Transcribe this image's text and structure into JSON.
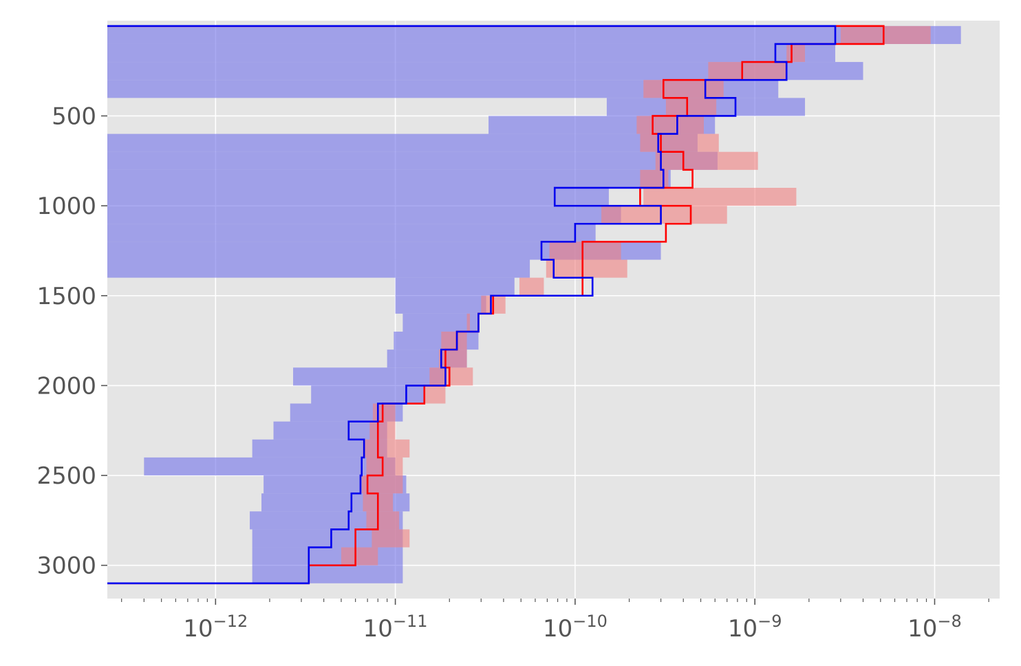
{
  "chart_data": {
    "type": "step-profile",
    "x_scale": "log",
    "y_inverted": true,
    "grid": true,
    "legend": "none",
    "xlim": [
      2.5e-13,
      2.3e-08
    ],
    "ylim": [
      3185,
      -30
    ],
    "x_ticks": [
      {
        "value": 1e-12,
        "base": "10",
        "exp": "−12"
      },
      {
        "value": 1e-11,
        "base": "10",
        "exp": "−11"
      },
      {
        "value": 1e-10,
        "base": "10",
        "exp": "−10"
      },
      {
        "value": 1e-09,
        "base": "10",
        "exp": "−9"
      },
      {
        "value": 1e-08,
        "base": "10",
        "exp": "−8"
      }
    ],
    "y_ticks": [
      "500",
      "1000",
      "1500",
      "2000",
      "2500",
      "3000"
    ],
    "colors": {
      "red": "#ff0000",
      "blue": "#0000ee",
      "red_band": "#f08080",
      "blue_band": "#7b7bea",
      "panel_bg": "#e5e5e5",
      "grid": "#ffffff"
    },
    "series": [
      {
        "color": "red",
        "bin_edges": [
          0,
          100,
          200,
          300,
          400,
          500,
          600,
          700,
          800,
          900,
          1000,
          1100,
          1200,
          1300,
          1400,
          1500,
          1600,
          1700,
          1800,
          1900,
          2000,
          2100,
          2200,
          2300,
          2400,
          2500,
          2600,
          2700,
          2800,
          2900,
          3000,
          3100
        ],
        "values": [
          5.2e-09,
          1.6e-09,
          8.5e-10,
          3.1e-10,
          4.2e-10,
          2.7e-10,
          3e-10,
          4e-10,
          4.5e-10,
          2.3e-10,
          4.4e-10,
          3.2e-10,
          1.1e-10,
          1.1e-10,
          1.1e-10,
          3.5e-11,
          2.9e-11,
          2.2e-11,
          1.9e-11,
          2e-11,
          1.45e-11,
          8.5e-12,
          8e-12,
          8e-12,
          8.5e-12,
          7e-12,
          8e-12,
          8e-12,
          6e-12,
          6e-12,
          3.3e-12
        ],
        "band_lo": [
          3e-09,
          1.5e-09,
          5.5e-10,
          2.4e-10,
          3.2e-10,
          2.2e-10,
          2.3e-10,
          2.8e-10,
          2.3e-10,
          2.4e-10,
          1.4e-10,
          1.8e-10,
          7.2e-11,
          6.9e-11,
          6.7e-11,
          3e-11,
          2.6e-11,
          1.8e-11,
          1.75e-11,
          1.55e-11,
          1.45e-11,
          7.5e-12,
          7.2e-12,
          6.6e-12,
          6.9e-12,
          6.5e-12,
          6.6e-12,
          6.9e-12,
          7.4e-12,
          5e-12,
          6e-12
        ],
        "band_hi": [
          9.5e-09,
          1.9e-09,
          1.5e-09,
          6.7e-10,
          6.1e-10,
          5.2e-10,
          6.3e-10,
          1.04e-09,
          3.3e-10,
          1.7e-09,
          7e-10,
          1.8e-10,
          1.8e-10,
          1.95e-10,
          4.9e-11,
          4.1e-11,
          2.5e-11,
          2.5e-11,
          2.5e-11,
          2.7e-11,
          1.9e-11,
          1e-11,
          1e-11,
          1.2e-11,
          1.1e-11,
          1.1e-11,
          9.7e-12,
          1.05e-11,
          1.2e-11,
          8e-12,
          6e-12
        ]
      },
      {
        "color": "blue",
        "bin_edges": [
          0,
          100,
          200,
          300,
          400,
          500,
          600,
          700,
          800,
          900,
          1000,
          1100,
          1200,
          1300,
          1400,
          1500,
          1600,
          1700,
          1800,
          1900,
          2000,
          2100,
          2200,
          2300,
          2400,
          2500,
          2600,
          2700,
          2800,
          2900,
          3000,
          3100
        ],
        "values": [
          2.8e-09,
          1.3e-09,
          1.5e-09,
          5.3e-10,
          7.8e-10,
          3.7e-10,
          2.9e-10,
          3e-10,
          3.1e-10,
          7.7e-11,
          3e-10,
          1e-10,
          6.5e-11,
          7.6e-11,
          1.25e-10,
          3.4e-11,
          2.9e-11,
          2.2e-11,
          1.8e-11,
          1.9e-11,
          1.15e-11,
          8e-12,
          5.5e-12,
          6.7e-12,
          6.5e-12,
          6.4e-12,
          5.7e-12,
          5.5e-12,
          4.4e-12,
          3.3e-12,
          3.3e-12
        ],
        "band_lo": [
          2.5e-13,
          2.5e-13,
          2.5e-13,
          2.5e-13,
          1.5e-10,
          3.3e-11,
          2.5e-13,
          2.5e-13,
          2.5e-13,
          2.5e-13,
          2.5e-13,
          2.5e-13,
          2.5e-13,
          2.5e-13,
          1e-11,
          1e-11,
          1.1e-11,
          9.8e-12,
          9e-12,
          2.7e-12,
          3.4e-12,
          2.6e-12,
          2.1e-12,
          1.6e-12,
          4e-13,
          1.85e-12,
          1.8e-12,
          1.55e-12,
          1.6e-12,
          1.6e-12,
          1.6e-12
        ],
        "band_hi": [
          1.4e-08,
          2.8e-09,
          4e-09,
          1.35e-09,
          1.9e-09,
          6e-10,
          4.8e-10,
          6.2e-10,
          3.4e-10,
          1.54e-10,
          1.8e-10,
          1.3e-10,
          3e-10,
          5.6e-11,
          4.6e-11,
          3.2e-11,
          2.9e-11,
          2.9e-11,
          2.5e-11,
          1.9e-11,
          1.45e-11,
          1.1e-11,
          9e-12,
          9e-12,
          1e-11,
          1.15e-11,
          1.2e-11,
          1.1e-11,
          1.1e-11,
          1.1e-11,
          1.1e-11
        ]
      }
    ]
  }
}
